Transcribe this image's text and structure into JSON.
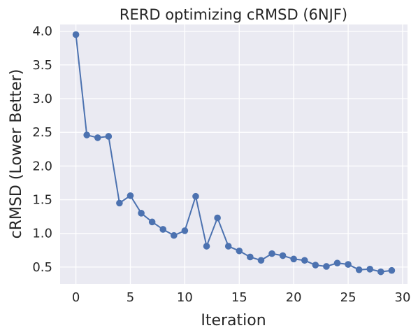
{
  "chart_data": {
    "type": "line",
    "title": "RERD optimizing cRMSD (6NJF)",
    "xlabel": "Iteration",
    "ylabel": "cRMSD (Lower Better)",
    "xlim": [
      -1.45,
      30.45
    ],
    "ylim": [
      0.25,
      4.1
    ],
    "xticks": [
      0,
      5,
      10,
      15,
      20,
      25,
      30
    ],
    "yticks": [
      0.5,
      1.0,
      1.5,
      2.0,
      2.5,
      3.0,
      3.5,
      4.0
    ],
    "xtick_labels": [
      "0",
      "5",
      "10",
      "15",
      "20",
      "25",
      "30"
    ],
    "ytick_labels": [
      "0.5",
      "1.0",
      "1.5",
      "2.0",
      "2.5",
      "3.0",
      "3.5",
      "4.0"
    ],
    "grid": true,
    "background": "#eaeaf2",
    "series": [
      {
        "color": "#4c72b0",
        "marker": "circle",
        "x": [
          0,
          1,
          2,
          3,
          4,
          5,
          6,
          7,
          8,
          9,
          10,
          11,
          12,
          13,
          14,
          15,
          16,
          17,
          18,
          19,
          20,
          21,
          22,
          23,
          24,
          25,
          26,
          27,
          28,
          29
        ],
        "y": [
          3.95,
          2.46,
          2.42,
          2.44,
          1.45,
          1.56,
          1.3,
          1.17,
          1.06,
          0.97,
          1.04,
          1.55,
          0.81,
          1.23,
          0.81,
          0.74,
          0.65,
          0.6,
          0.7,
          0.67,
          0.62,
          0.6,
          0.53,
          0.51,
          0.56,
          0.54,
          0.46,
          0.47,
          0.43,
          0.45
        ]
      }
    ]
  }
}
